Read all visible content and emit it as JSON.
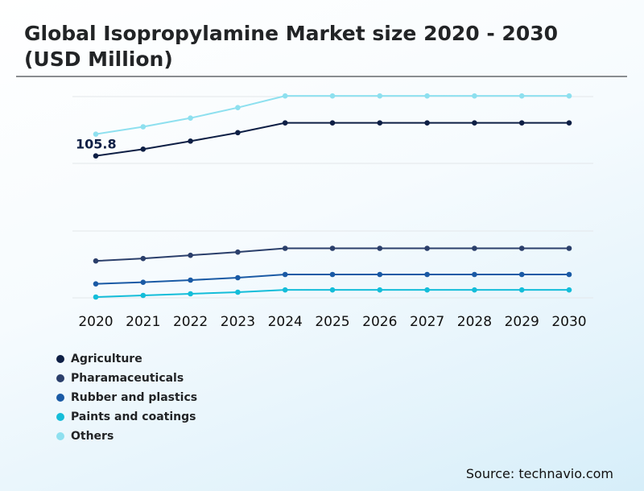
{
  "title": "Global Isopropylamine Market size 2020 - 2030 (USD Million)",
  "source": "Source: technavio.com",
  "colors": {
    "agriculture": "#0e1f45",
    "pharmaceuticals": "#2b3f6b",
    "rubber": "#1a5aa5",
    "paints": "#14bdd9",
    "others": "#8ee0ef",
    "grid": "#e3e7ea"
  },
  "chart_data": {
    "type": "line",
    "x": [
      "2020",
      "2021",
      "2022",
      "2023",
      "2024",
      "2025",
      "2026",
      "2027",
      "2028",
      "2029",
      "2030"
    ],
    "ylim": [
      0,
      150
    ],
    "grid": true,
    "legend_position": "bottom-left",
    "series": [
      {
        "name": "Agriculture",
        "values": [
          105.8,
          110.8,
          116.8,
          123.1,
          130.4,
          130.4,
          130.4,
          130.4,
          130.4,
          130.4,
          130.4
        ]
      },
      {
        "name": "Pharamaceuticals",
        "values": [
          27.5,
          29.3,
          31.7,
          34.1,
          36.9,
          36.9,
          36.9,
          36.9,
          36.9,
          36.9,
          36.9
        ]
      },
      {
        "name": "Rubber and plastics",
        "values": [
          10.4,
          11.6,
          13.2,
          15.0,
          17.4,
          17.4,
          17.4,
          17.4,
          17.4,
          17.4,
          17.4
        ]
      },
      {
        "name": "Paints and coatings",
        "values": [
          0.6,
          1.8,
          3.0,
          4.2,
          5.9,
          5.9,
          5.9,
          5.9,
          5.9,
          5.9,
          5.9
        ]
      },
      {
        "name": "Others",
        "values": [
          122.0,
          127.5,
          134.0,
          141.8,
          150.5,
          150.5,
          150.5,
          150.5,
          150.5,
          150.5,
          150.5
        ]
      }
    ],
    "annotations": [
      {
        "series": "Agriculture",
        "x": "2020",
        "text": "105.8"
      }
    ]
  }
}
